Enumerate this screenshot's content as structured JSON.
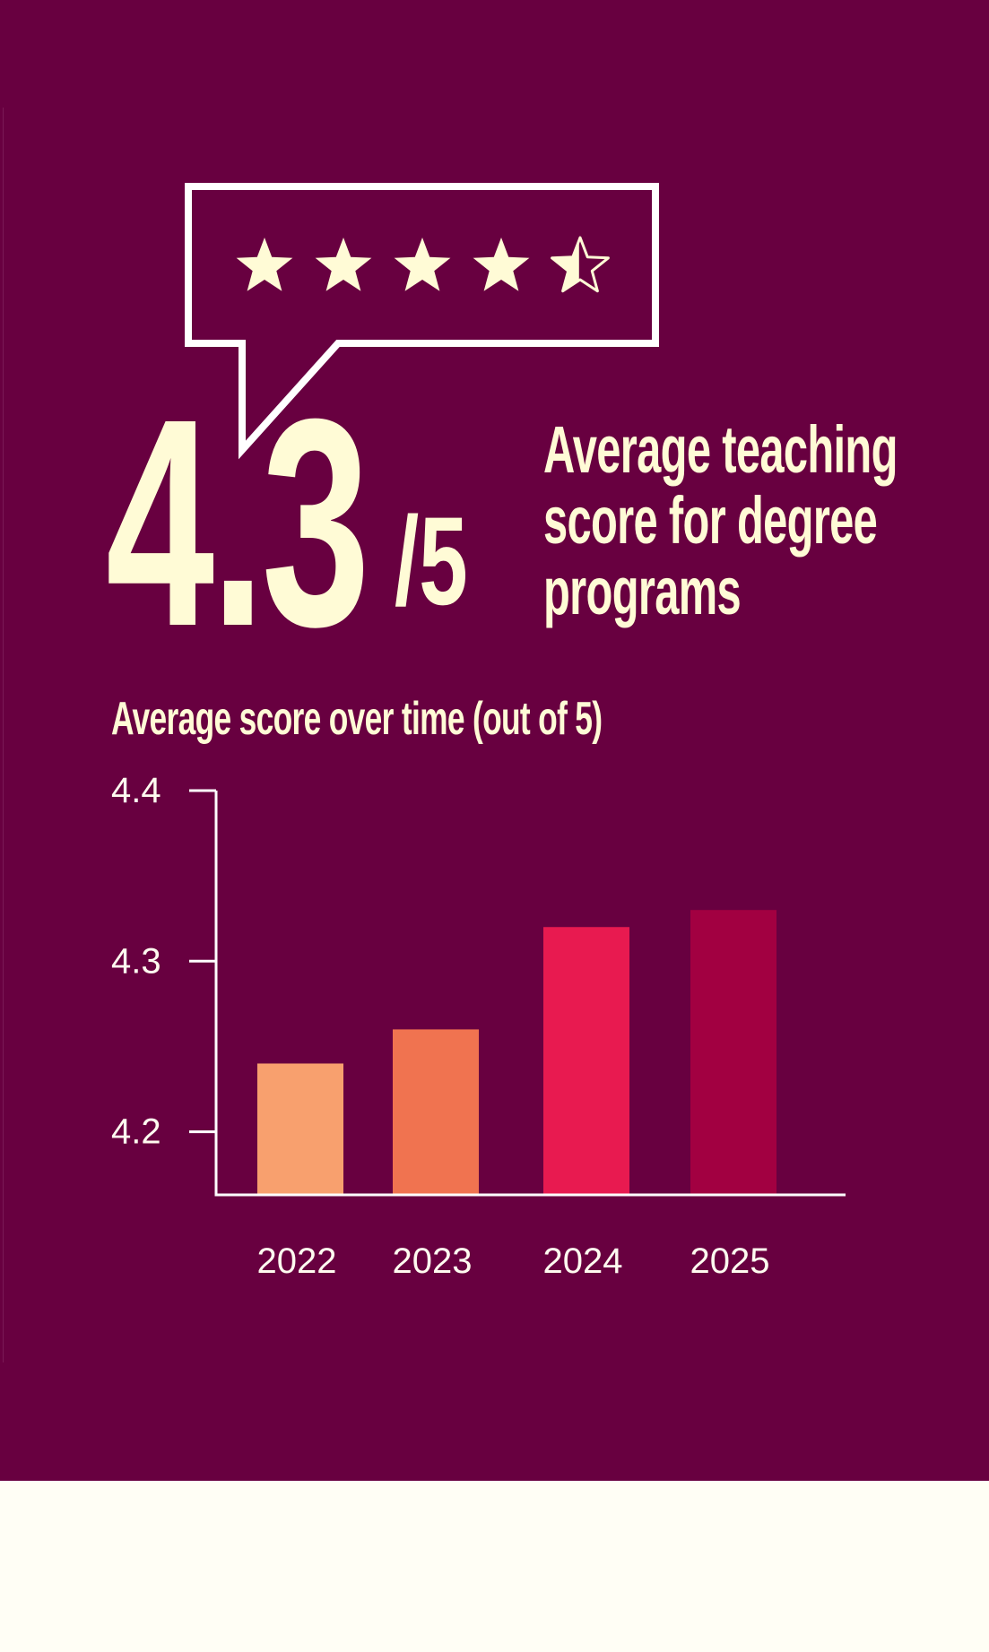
{
  "score": {
    "value": "4.3",
    "out_of": "/5",
    "stars_filled": 4.3,
    "stars_total": 5,
    "caption_lines": [
      "Average teaching",
      "score for degree",
      "programs"
    ]
  },
  "colors": {
    "background": "#680040",
    "page": "#FFFEF5",
    "text_cream": "#FFFBD6",
    "axis": "#FFFFFF"
  },
  "chart_data": {
    "type": "bar",
    "title": "Average score over time (out of 5)",
    "xlabel": "",
    "ylabel": "",
    "categories": [
      "2022",
      "2023",
      "2024",
      "2025"
    ],
    "values": [
      4.24,
      4.26,
      4.32,
      4.33
    ],
    "bar_colors": [
      "#F8A06E",
      "#F07350",
      "#E81A50",
      "#A20041"
    ],
    "yticks": [
      4.2,
      4.3,
      4.4
    ],
    "ytick_labels": [
      "4.2",
      "4.3",
      "4.4"
    ],
    "ylim": [
      4.163,
      4.4
    ],
    "grid": false
  }
}
